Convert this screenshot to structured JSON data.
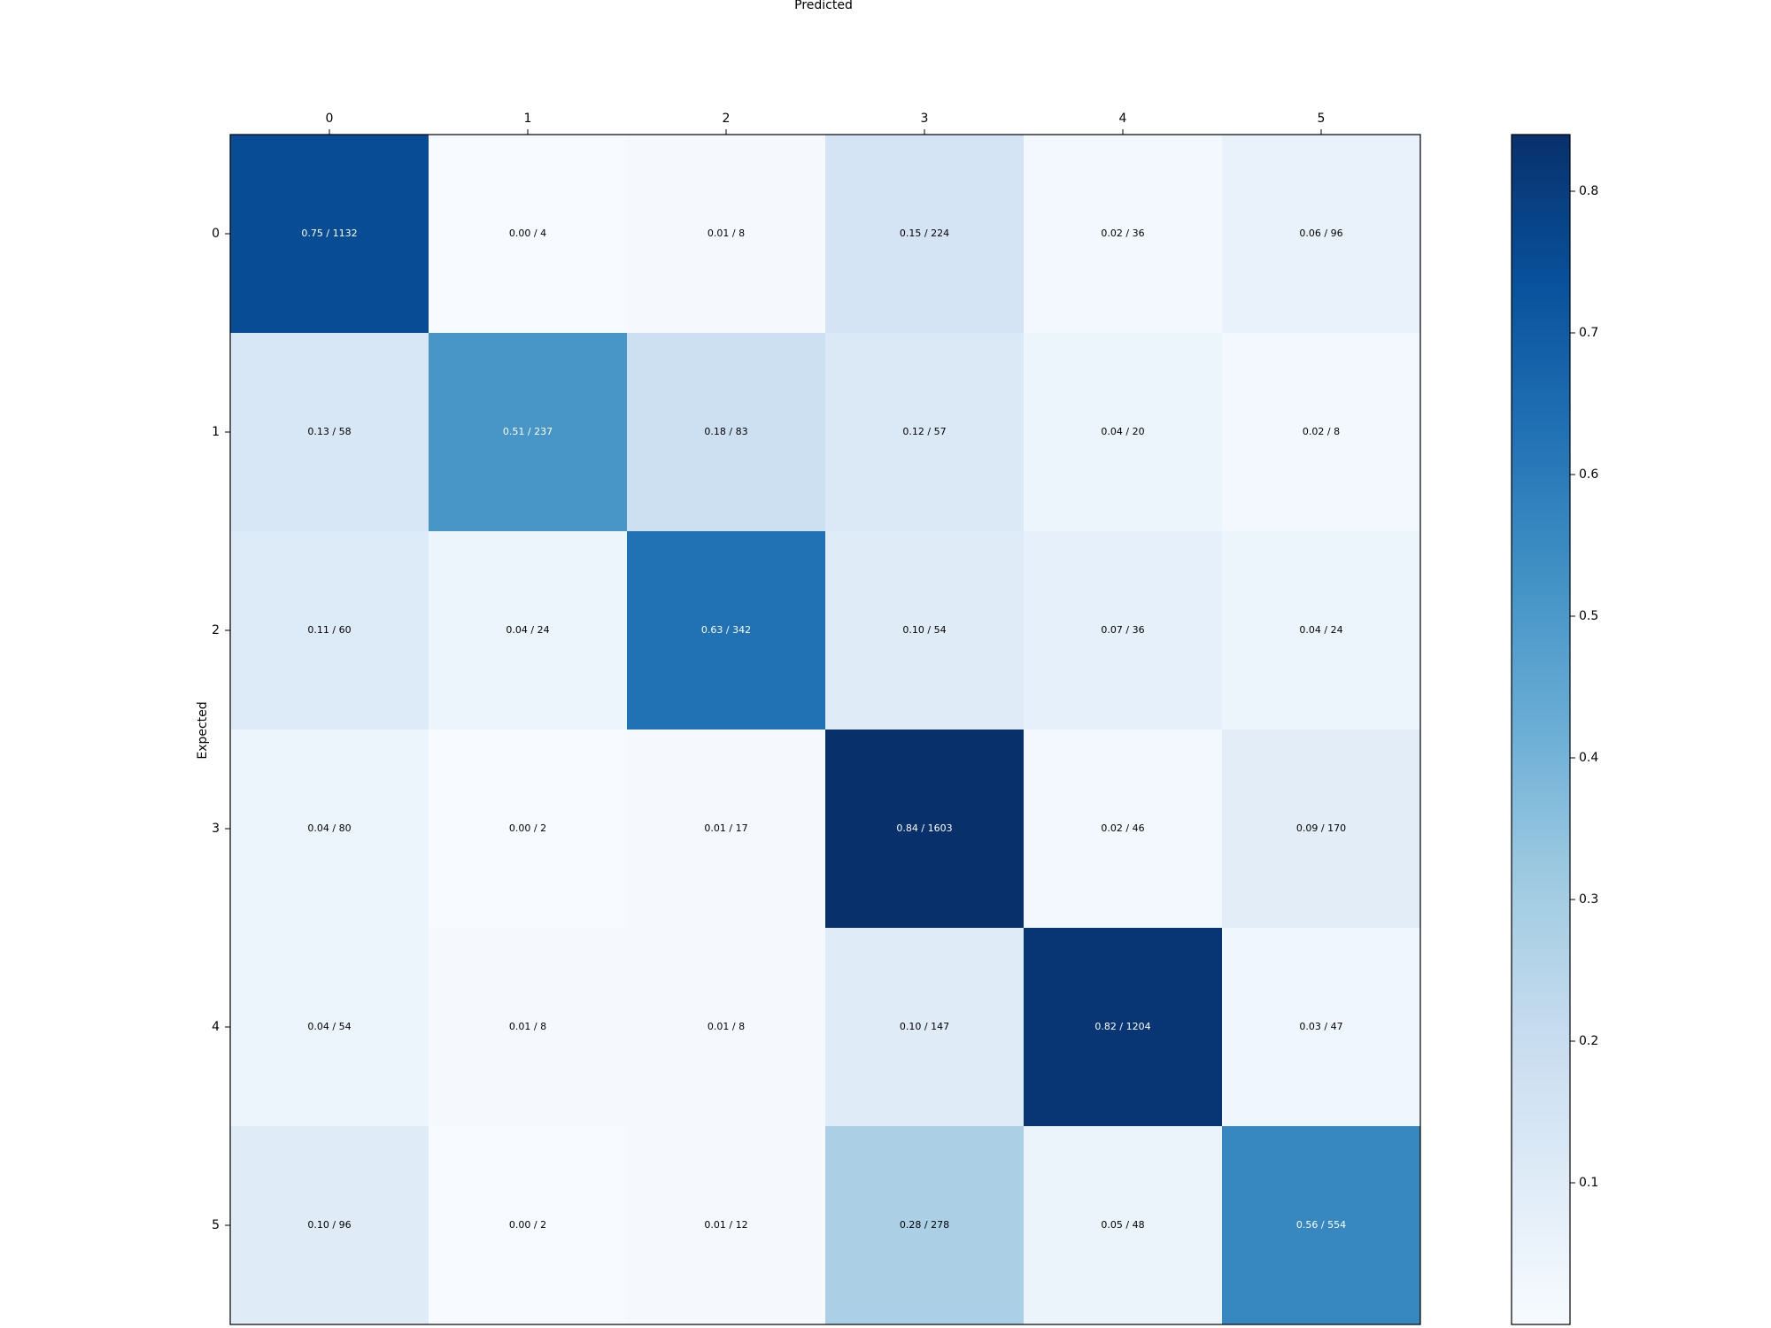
{
  "chart_data": {
    "type": "heatmap",
    "title": "",
    "xlabel": "Predicted",
    "ylabel": "Expected",
    "x_categories": [
      "0",
      "1",
      "2",
      "3",
      "4",
      "5"
    ],
    "y_categories": [
      "0",
      "1",
      "2",
      "3",
      "4",
      "5"
    ],
    "values": [
      [
        0.75,
        0.0,
        0.01,
        0.15,
        0.02,
        0.06
      ],
      [
        0.13,
        0.51,
        0.18,
        0.12,
        0.04,
        0.02
      ],
      [
        0.11,
        0.04,
        0.63,
        0.1,
        0.07,
        0.04
      ],
      [
        0.04,
        0.0,
        0.01,
        0.84,
        0.02,
        0.09
      ],
      [
        0.04,
        0.01,
        0.01,
        0.1,
        0.82,
        0.03
      ],
      [
        0.1,
        0.0,
        0.01,
        0.28,
        0.05,
        0.56
      ]
    ],
    "counts": [
      [
        1132,
        4,
        8,
        224,
        36,
        96
      ],
      [
        58,
        237,
        83,
        57,
        20,
        8
      ],
      [
        60,
        24,
        342,
        54,
        36,
        24
      ],
      [
        80,
        2,
        17,
        1603,
        46,
        170
      ],
      [
        54,
        8,
        8,
        147,
        1204,
        47
      ],
      [
        96,
        2,
        12,
        278,
        48,
        554
      ]
    ],
    "cell_labels": [
      [
        "0.75 / 1132",
        "0.00 / 4",
        "0.01 / 8",
        "0.15 / 224",
        "0.02 / 36",
        "0.06 / 96"
      ],
      [
        "0.13 / 58",
        "0.51 / 237",
        "0.18 / 83",
        "0.12 / 57",
        "0.04 / 20",
        "0.02 / 8"
      ],
      [
        "0.11 / 60",
        "0.04 / 24",
        "0.63 / 342",
        "0.10 / 54",
        "0.07 / 36",
        "0.04 / 24"
      ],
      [
        "0.04 / 80",
        "0.00 / 2",
        "0.01 / 17",
        "0.84 / 1603",
        "0.02 / 46",
        "0.09 / 170"
      ],
      [
        "0.04 / 54",
        "0.01 / 8",
        "0.01 / 8",
        "0.10 / 147",
        "0.82 / 1204",
        "0.03 / 47"
      ],
      [
        "0.10 / 96",
        "0.00 / 2",
        "0.01 / 12",
        "0.28 / 278",
        "0.05 / 48",
        "0.56 / 554"
      ]
    ],
    "x_axis_position": "top",
    "colormap": "Blues",
    "colorbar": {
      "range": [
        0.0,
        0.84
      ],
      "ticks": [
        0.1,
        0.2,
        0.3,
        0.4,
        0.5,
        0.6,
        0.7,
        0.8
      ],
      "tick_labels": [
        "0.1",
        "0.2",
        "0.3",
        "0.4",
        "0.5",
        "0.6",
        "0.7",
        "0.8"
      ],
      "placement": "right"
    },
    "grid": false,
    "colors": {
      "text_dark": "#000000",
      "text_light": "#ffffff",
      "frame": "#000000"
    }
  }
}
